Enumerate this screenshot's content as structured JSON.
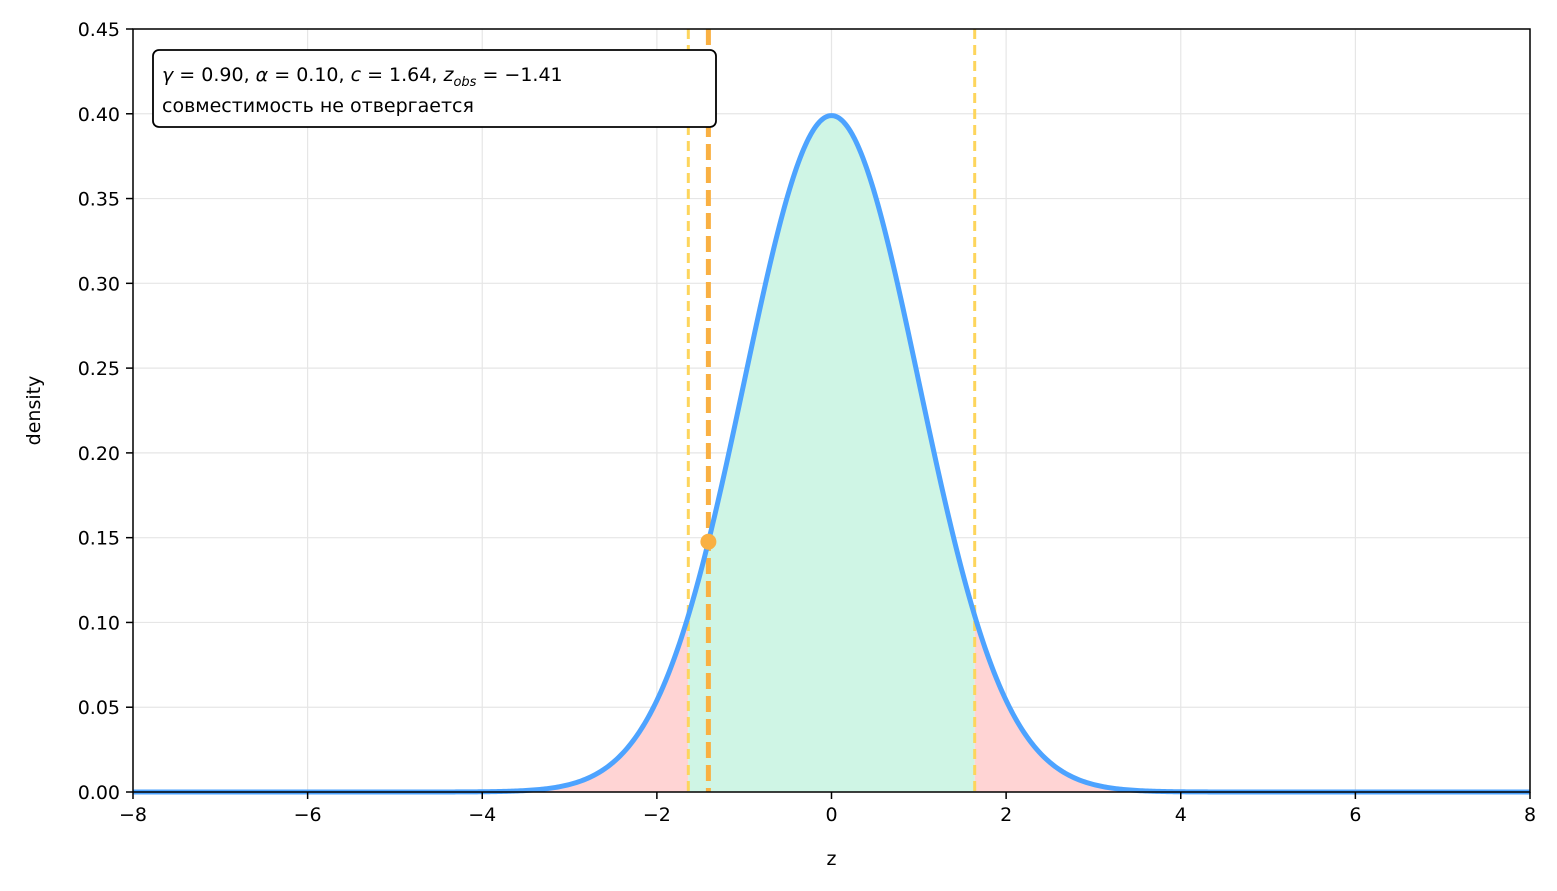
{
  "chart_data": {
    "type": "area",
    "xlabel": "z",
    "ylabel": "density",
    "xlim": [
      -8,
      8
    ],
    "ylim": [
      0,
      0.45
    ],
    "x_ticks": [
      -8,
      -6,
      -4,
      -2,
      0,
      2,
      4,
      6,
      8
    ],
    "x_tick_labels": [
      "−8",
      "−6",
      "−4",
      "−2",
      "0",
      "2",
      "4",
      "6",
      "8"
    ],
    "y_ticks": [
      0,
      0.05,
      0.1,
      0.15,
      0.2,
      0.25,
      0.3,
      0.35,
      0.4,
      0.45
    ],
    "y_tick_labels": [
      "0.00",
      "0.05",
      "0.10",
      "0.15",
      "0.20",
      "0.25",
      "0.30",
      "0.35",
      "0.40",
      "0.45"
    ],
    "grid": true,
    "curve": {
      "distribution": "standard normal pdf",
      "mean": 0,
      "sd": 1,
      "color": "#4da3ff"
    },
    "regions": {
      "acceptance": {
        "from": -1.64,
        "to": 1.64,
        "color": "#cff5e5"
      },
      "rejection_left": {
        "from": -8,
        "to": -1.64,
        "color": "#ffd4d4"
      },
      "rejection_right": {
        "from": 1.64,
        "to": 8,
        "color": "#ffd4d4"
      }
    },
    "critical_value": 1.64,
    "critical_lines_color": "#fdd55c",
    "z_obs": -1.41,
    "z_obs_density": 0.1476,
    "z_obs_color": "#f9b042",
    "annotation": {
      "gamma_sym": "γ",
      "alpha_sym": "α",
      "c_sym": "c",
      "z_sym": "z",
      "z_sub": "obs",
      "gamma": "0.90",
      "alpha": "0.10",
      "c": "1.64",
      "z_obs": "−1.41",
      "line2": "совместимость не отвергается"
    }
  }
}
